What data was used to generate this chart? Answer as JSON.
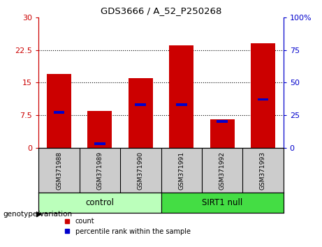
{
  "title": "GDS3666 / A_52_P250268",
  "samples": [
    "GSM371988",
    "GSM371989",
    "GSM371990",
    "GSM371991",
    "GSM371992",
    "GSM371993"
  ],
  "count_values": [
    17.0,
    8.5,
    16.0,
    23.5,
    6.5,
    24.0
  ],
  "percentile_values": [
    27,
    3,
    33,
    33,
    20,
    37
  ],
  "groups": [
    {
      "label": "control",
      "indices": [
        0,
        1,
        2
      ],
      "color": "#aaffaa"
    },
    {
      "label": "SIRT1 null",
      "indices": [
        3,
        4,
        5
      ],
      "color": "#55ee55"
    }
  ],
  "left_ylim": [
    0,
    30
  ],
  "right_ylim": [
    0,
    100
  ],
  "left_yticks": [
    0,
    7.5,
    15,
    22.5,
    30
  ],
  "right_yticks": [
    0,
    25,
    50,
    75,
    100
  ],
  "left_yticklabels": [
    "0",
    "7.5",
    "15",
    "22.5",
    "30"
  ],
  "right_yticklabels": [
    "0",
    "25",
    "50",
    "75",
    "100%"
  ],
  "bar_color": "#cc0000",
  "percentile_color": "#0000cc",
  "bar_width": 0.6,
  "left_axis_color": "#cc0000",
  "right_axis_color": "#0000cc",
  "grid_vals": [
    7.5,
    15,
    22.5
  ],
  "label_bg": "#cccccc",
  "control_color": "#bbffbb",
  "sirt_color": "#44dd44"
}
